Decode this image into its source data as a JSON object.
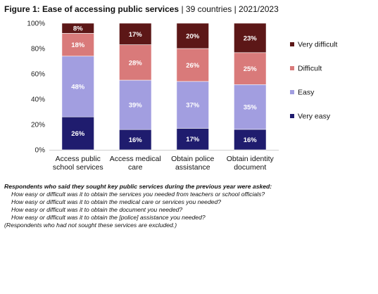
{
  "figure": {
    "title_bold": "Figure 1: Ease of accessing public services",
    "title_rest": " | 39 countries | 2021/2023"
  },
  "chart_data": {
    "type": "bar",
    "stacked": true,
    "percent": true,
    "categories": [
      [
        "Access public",
        "school services"
      ],
      [
        "Access medical",
        "care"
      ],
      [
        "Obtain police",
        "assistance"
      ],
      [
        "Obtain identity",
        "document"
      ]
    ],
    "series": [
      {
        "name": "Very easy",
        "values": [
          26,
          16,
          17,
          16
        ],
        "color": "#1f1c6e"
      },
      {
        "name": "Easy",
        "values": [
          48,
          39,
          37,
          35
        ],
        "color": "#a29ee0"
      },
      {
        "name": "Difficult",
        "values": [
          18,
          28,
          26,
          25
        ],
        "color": "#d97a7a"
      },
      {
        "name": "Very difficult",
        "values": [
          8,
          17,
          20,
          23
        ],
        "color": "#5c1717"
      }
    ],
    "ylim": [
      0,
      100
    ],
    "yticks": [
      "0%",
      "20%",
      "40%",
      "60%",
      "80%",
      "100%"
    ],
    "legend_order": [
      "Very difficult",
      "Difficult",
      "Easy",
      "Very easy"
    ],
    "legend_position": "right",
    "grid": false
  },
  "notes": {
    "intro": "Respondents who said they sought key public services during the previous year were asked:",
    "questions": [
      "How easy or difficult was it to obtain the services you needed from teachers or school officials?",
      "How easy or difficult was it to obtain the medical care or services you needed?",
      "How easy or difficult was it to obtain the document you needed?",
      "How easy or difficult was it to obtain the [police] assistance you needed?"
    ],
    "exclusion": "(Respondents who had not sought these services are excluded.)"
  }
}
